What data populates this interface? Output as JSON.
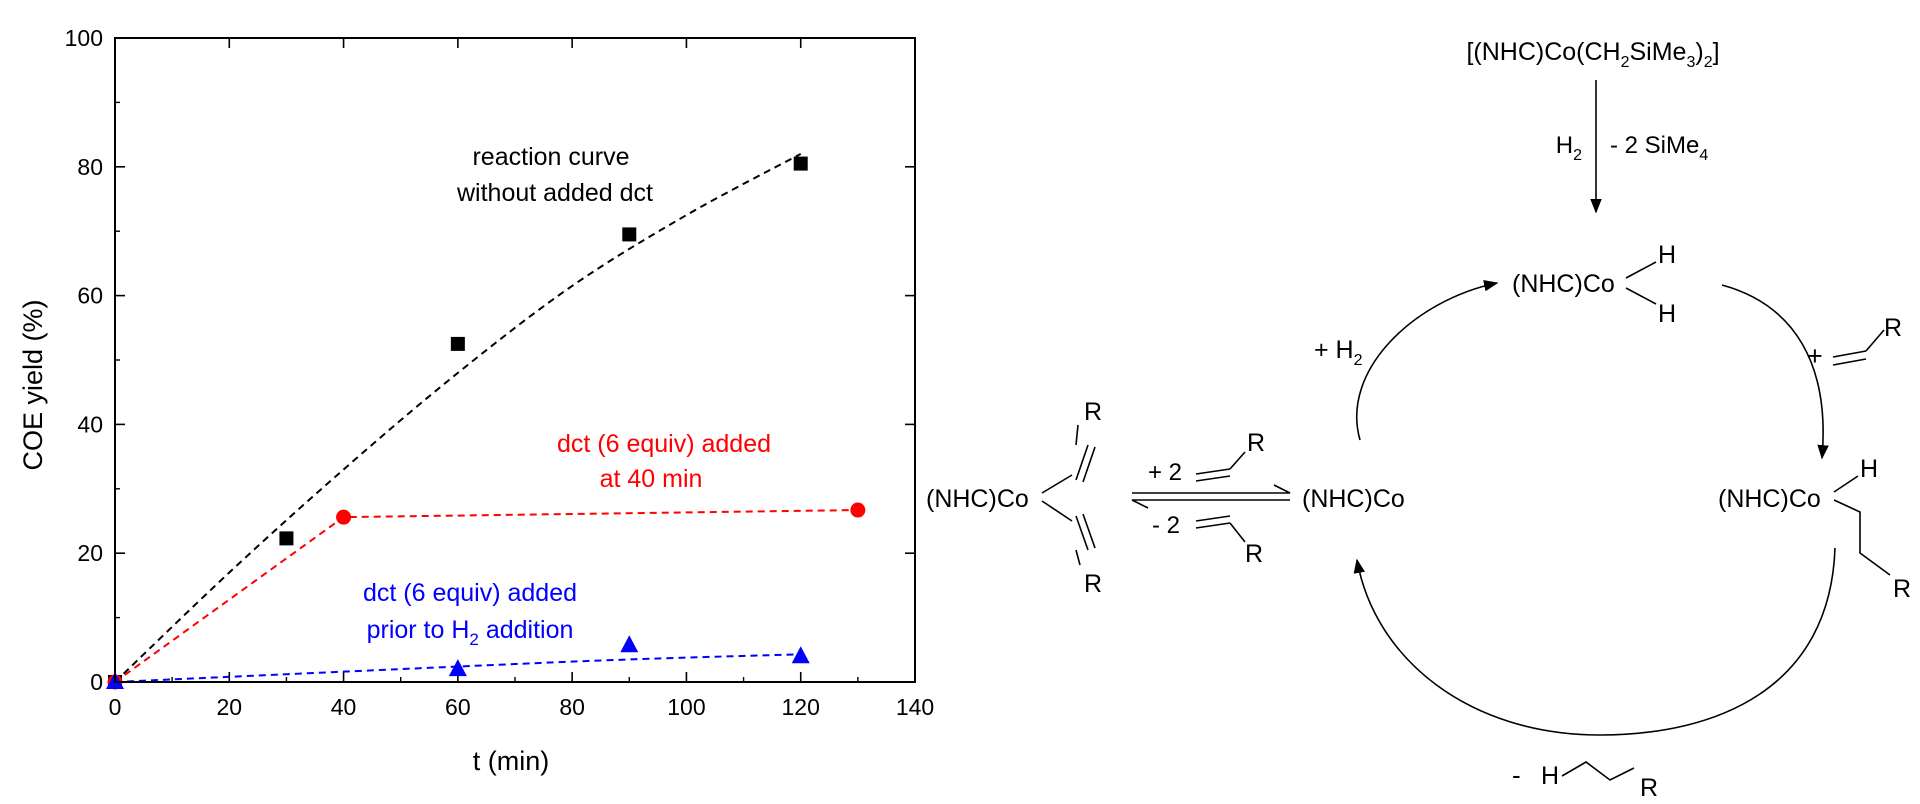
{
  "chart_data": {
    "type": "scatter",
    "xlabel": "t (min)",
    "ylabel": "COE yield (%)",
    "xlim": [
      0,
      140
    ],
    "ylim": [
      0,
      100
    ],
    "xticks": [
      0,
      20,
      40,
      60,
      80,
      100,
      120,
      140
    ],
    "xtick_labels": [
      "0",
      "20",
      "40",
      "60",
      "80",
      "100",
      "120",
      "140"
    ],
    "yticks": [
      0,
      20,
      40,
      60,
      80,
      100
    ],
    "ytick_labels": [
      "0",
      "20",
      "40",
      "60",
      "80",
      "100"
    ],
    "grid": false,
    "series": [
      {
        "color": "#000000",
        "marker": "square",
        "points": [
          [
            0,
            0
          ],
          [
            30,
            22.3
          ],
          [
            60,
            52.5
          ],
          [
            90,
            69.5
          ],
          [
            120,
            80.5
          ]
        ],
        "fit_curve": [
          [
            0,
            0
          ],
          [
            20,
            17
          ],
          [
            40,
            33
          ],
          [
            60,
            48
          ],
          [
            80,
            61.5
          ],
          [
            100,
            72.5
          ],
          [
            120,
            82
          ]
        ],
        "annotation": [
          "reaction curve",
          "without added dct"
        ]
      },
      {
        "color": "#ff0000",
        "marker": "circle",
        "points": [
          [
            0,
            0
          ],
          [
            40,
            25.6
          ],
          [
            130,
            26.7
          ]
        ],
        "fit_curve": [
          [
            0,
            0
          ],
          [
            40,
            25.6
          ],
          [
            130,
            26.7
          ]
        ],
        "annotation": [
          "dct (6 equiv) added",
          "at 40 min"
        ]
      },
      {
        "color": "#0000ff",
        "marker": "triangle",
        "points": [
          [
            0,
            0
          ],
          [
            60,
            2
          ],
          [
            90,
            5.7
          ],
          [
            120,
            4
          ]
        ],
        "fit_curve": [
          [
            0,
            0
          ],
          [
            60,
            2.4
          ],
          [
            90,
            3.5
          ],
          [
            120,
            4.3
          ]
        ],
        "annotation_line1": "dct (6 equiv) added",
        "annotation_line2_pre": "prior to H",
        "annotation_line2_sub": "2",
        "annotation_line2_post": " addition"
      }
    ]
  },
  "scheme": {
    "precatalyst_parts": [
      "[(NHC)Co(CH",
      "2",
      "SiMe",
      "3",
      ")",
      "2",
      "]"
    ],
    "activation_left": [
      "H",
      "2"
    ],
    "activation_right": [
      "- 2 SiMe",
      "4"
    ],
    "dihydride_label": "(NHC)Co",
    "dihydride_h1": "H",
    "dihydride_h2": "H",
    "plus_alkene_sign": "+",
    "alkene_r": "R",
    "alkyl_label": "(NHC)Co",
    "alkyl_h": "H",
    "alkyl_r": "R",
    "product_minus": "-",
    "product_h": "H",
    "product_r": "R",
    "co_label": "(NHC)Co",
    "plus_h2": [
      "+ H",
      "2"
    ],
    "eq_top": "+ 2",
    "eq_bottom": "- 2",
    "eq_top_r": "R",
    "eq_bottom_r": "R",
    "bis_label": "(NHC)Co",
    "bis_r_top": "R",
    "bis_r_bottom": "R"
  }
}
